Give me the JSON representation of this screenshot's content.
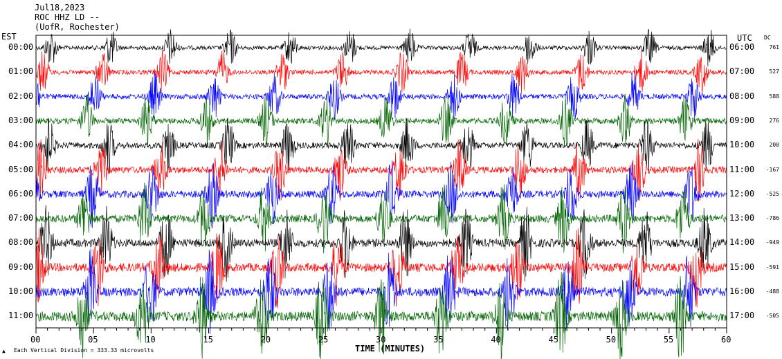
{
  "header": {
    "date": "Jul18,2023",
    "station": "ROC HHZ LD --",
    "location": "(UofR, Rochester)"
  },
  "footer": {
    "scale_note": "Each Vertical Division = 333.33 microvolts",
    "x_title": "TIME (MINUTES)"
  },
  "chart_data": {
    "type": "line",
    "title": "Jul18,2023  ROC HHZ LD --  (UofR, Rochester)",
    "xlabel": "TIME (MINUTES)",
    "left_axis_title": "EST",
    "right_axis_title": "UTC",
    "dc_title": "DC",
    "xlim": [
      0,
      60
    ],
    "x_ticks": [
      "00",
      "05",
      "10",
      "15",
      "20",
      "25",
      "30",
      "35",
      "40",
      "45",
      "50",
      "55",
      "60"
    ],
    "grid": false,
    "series": [
      {
        "est": "00:00",
        "utc": "06:00",
        "dc": "761",
        "color": "#000000"
      },
      {
        "est": "01:00",
        "utc": "07:00",
        "dc": "527",
        "color": "#ff0000"
      },
      {
        "est": "02:00",
        "utc": "08:00",
        "dc": "588",
        "color": "#0000ff"
      },
      {
        "est": "03:00",
        "utc": "09:00",
        "dc": "276",
        "color": "#006400"
      },
      {
        "est": "04:00",
        "utc": "10:00",
        "dc": "200",
        "color": "#000000"
      },
      {
        "est": "05:00",
        "utc": "11:00",
        "dc": "-167",
        "color": "#ff0000"
      },
      {
        "est": "06:00",
        "utc": "12:00",
        "dc": "-525",
        "color": "#0000ff"
      },
      {
        "est": "07:00",
        "utc": "13:00",
        "dc": "-786",
        "color": "#006400"
      },
      {
        "est": "08:00",
        "utc": "14:00",
        "dc": "-949",
        "color": "#000000"
      },
      {
        "est": "09:00",
        "utc": "15:00",
        "dc": "-591",
        "color": "#ff0000"
      },
      {
        "est": "10:00",
        "utc": "16:00",
        "dc": "-488",
        "color": "#0000ff"
      },
      {
        "est": "11:00",
        "utc": "17:00",
        "dc": "-505",
        "color": "#006400"
      }
    ]
  }
}
